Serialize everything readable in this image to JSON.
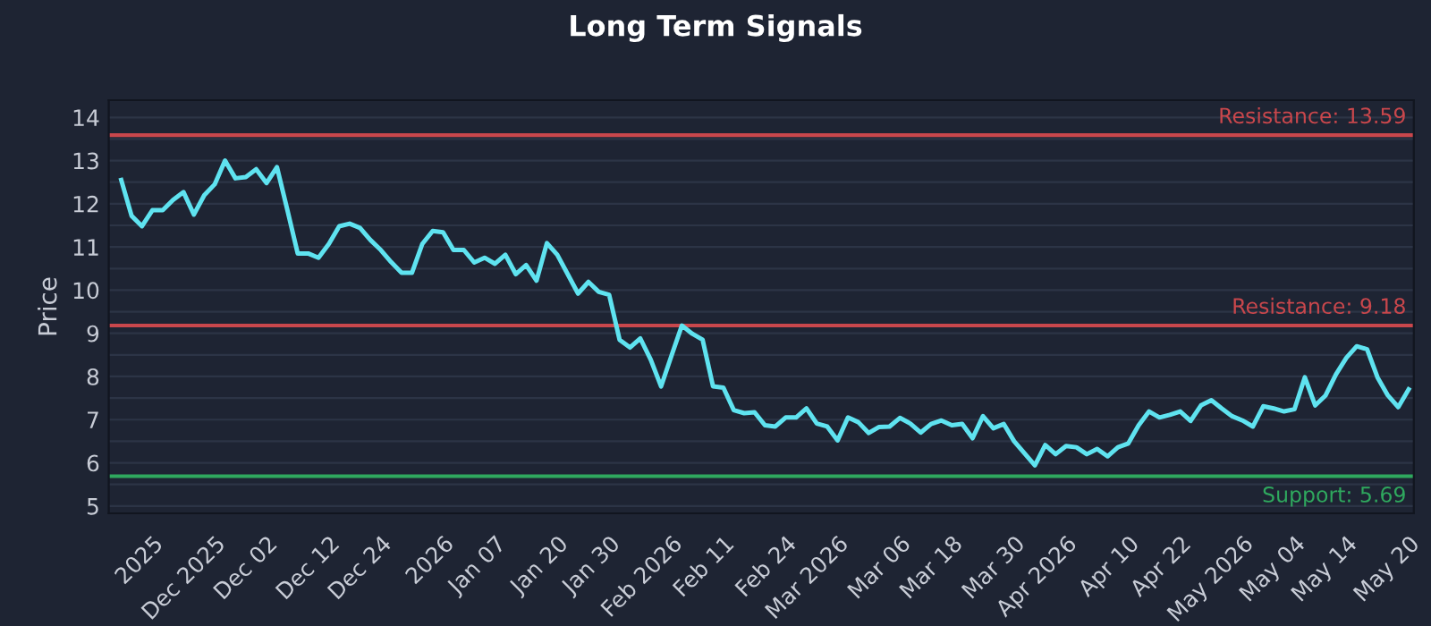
{
  "chart_data": {
    "type": "line",
    "title": "Long Term Signals",
    "ylabel": "Price",
    "categories": [
      null,
      null,
      null,
      "2025",
      null,
      null,
      null,
      null,
      null,
      "Dec 2025",
      null,
      null,
      null,
      null,
      "Dec 02",
      null,
      null,
      null,
      null,
      null,
      "Dec 12",
      null,
      null,
      null,
      null,
      "Dec 24",
      null,
      null,
      null,
      null,
      null,
      "2026",
      null,
      null,
      null,
      null,
      "Jan 07",
      null,
      null,
      null,
      null,
      null,
      "Jan 20",
      null,
      null,
      null,
      null,
      "Jan 30",
      null,
      null,
      null,
      null,
      null,
      "Feb 2026",
      null,
      null,
      null,
      null,
      "Feb 11",
      null,
      null,
      null,
      null,
      null,
      "Feb 24",
      null,
      null,
      null,
      null,
      "Mar 2026",
      null,
      null,
      null,
      null,
      null,
      "Mar 06",
      null,
      null,
      null,
      null,
      "Mar 18",
      null,
      null,
      null,
      null,
      null,
      "Mar 30",
      null,
      null,
      null,
      null,
      "Apr 2026",
      null,
      null,
      null,
      null,
      null,
      "Apr 10",
      null,
      null,
      null,
      null,
      "Apr 22",
      null,
      null,
      null,
      null,
      null,
      "May 2026",
      null,
      null,
      null,
      null,
      "May 04",
      null,
      null,
      null,
      null,
      "May 14",
      null,
      null,
      null,
      null,
      null,
      "May 20"
    ],
    "series": [
      {
        "color": "#5fe3f0",
        "values": [
          12.55,
          11.72,
          11.48,
          11.85,
          11.85,
          12.09,
          12.27,
          11.75,
          12.2,
          12.45,
          13.0,
          12.59,
          12.62,
          12.8,
          12.48,
          12.85,
          11.86,
          10.85,
          10.85,
          10.75,
          11.07,
          11.48,
          11.54,
          11.44,
          11.16,
          10.93,
          10.65,
          10.4,
          10.4,
          11.07,
          11.37,
          11.34,
          10.93,
          10.93,
          10.64,
          10.75,
          10.61,
          10.82,
          10.37,
          10.58,
          10.22,
          11.09,
          10.82,
          10.37,
          9.92,
          10.19,
          9.96,
          9.89,
          8.85,
          8.67,
          8.88,
          8.39,
          7.77,
          8.48,
          9.18,
          8.99,
          8.85,
          7.77,
          7.74,
          7.22,
          7.15,
          7.17,
          6.87,
          6.84,
          7.05,
          7.05,
          7.26,
          6.91,
          6.84,
          6.52,
          7.05,
          6.94,
          6.69,
          6.83,
          6.84,
          7.04,
          6.91,
          6.7,
          6.9,
          6.98,
          6.87,
          6.9,
          6.57,
          7.08,
          6.8,
          6.9,
          6.5,
          6.22,
          5.94,
          6.41,
          6.2,
          6.39,
          6.36,
          6.2,
          6.32,
          6.15,
          6.36,
          6.45,
          6.87,
          7.19,
          7.05,
          7.11,
          7.19,
          6.97,
          7.33,
          7.45,
          7.26,
          7.08,
          6.98,
          6.84,
          7.31,
          7.26,
          7.19,
          7.24,
          7.98,
          7.33,
          7.56,
          8.05,
          8.43,
          8.7,
          8.63,
          7.98,
          7.56,
          7.29,
          7.7
        ]
      }
    ],
    "ylim": [
      4.83,
      14.4
    ],
    "yticks": [
      5,
      {
        "value": 5.5,
        "label": null
      },
      6,
      {
        "value": 6.5,
        "label": null
      },
      7,
      {
        "value": 7.5,
        "label": null
      },
      8,
      {
        "value": 8.5,
        "label": null
      },
      9,
      {
        "value": 9.5,
        "label": null
      },
      10,
      {
        "value": 10.5,
        "label": null
      },
      11,
      {
        "value": 11.5,
        "label": null
      },
      12,
      {
        "value": 12.5,
        "label": null
      },
      13,
      {
        "value": 13.5,
        "label": null
      },
      14
    ],
    "grid": "y",
    "line_style": "solid",
    "ref_lines": [
      {
        "axis": "y",
        "value": 13.59,
        "label": "Resistance: 13.59",
        "color": "#c9474c"
      },
      {
        "axis": "y",
        "value": 9.18,
        "label": "Resistance: 9.18",
        "color": "#c9474c"
      },
      {
        "axis": "y",
        "value": 5.69,
        "label": "Support: 5.69",
        "color": "#2fa85e"
      }
    ]
  }
}
